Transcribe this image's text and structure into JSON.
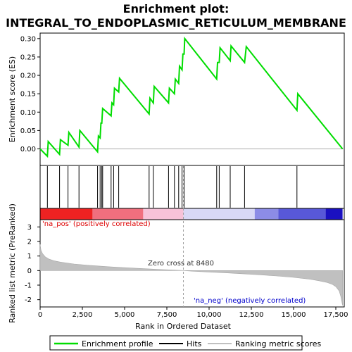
{
  "chart_data": {
    "type": "line",
    "title_line1": "Enrichment plot:",
    "title_line2": "INTEGRAL_TO_ENDOPLASMIC_RETICULUM_MEMBRANE",
    "es_panel": {
      "ylabel": "Enrichment score (ES)",
      "ylim": [
        -0.045,
        0.315
      ],
      "yticks": [
        0.0,
        0.05,
        0.1,
        0.15,
        0.2,
        0.25,
        0.3
      ],
      "ytick_labels": [
        "0.00",
        "0.05",
        "0.10",
        "0.15",
        "0.20",
        "0.25",
        "0.30"
      ],
      "line_color": "#00dd00",
      "series": [
        {
          "name": "Enrichment profile",
          "x": [
            0,
            430,
            480,
            1150,
            1200,
            1650,
            1700,
            2300,
            2350,
            3400,
            3450,
            3550,
            3600,
            3650,
            3700,
            4200,
            4250,
            4350,
            4400,
            4650,
            4700,
            6450,
            6500,
            6700,
            6750,
            7600,
            7650,
            7950,
            8000,
            8200,
            8250,
            8400,
            8450,
            8520,
            8560,
            10450,
            10500,
            10600,
            10650,
            11250,
            11300,
            12100,
            12200,
            15200,
            15250,
            17900
          ],
          "y": [
            0.0,
            -0.02,
            0.02,
            -0.015,
            0.025,
            0.01,
            0.045,
            0.005,
            0.05,
            -0.008,
            0.035,
            0.03,
            0.07,
            0.07,
            0.11,
            0.09,
            0.125,
            0.12,
            0.165,
            0.155,
            0.192,
            0.095,
            0.138,
            0.125,
            0.17,
            0.125,
            0.165,
            0.15,
            0.19,
            0.178,
            0.225,
            0.215,
            0.258,
            0.258,
            0.3,
            0.19,
            0.235,
            0.235,
            0.275,
            0.24,
            0.28,
            0.235,
            0.278,
            0.105,
            0.15,
            0.0
          ]
        }
      ]
    },
    "hits": [
      430,
      1150,
      1650,
      2300,
      3400,
      3550,
      3650,
      3700,
      4200,
      4350,
      4650,
      6450,
      6700,
      7600,
      7950,
      8200,
      8400,
      8520,
      10450,
      10600,
      11250,
      12100,
      15200
    ],
    "rank_panel": {
      "ylabel": "Ranked list metric (PreRanked)",
      "xlabel": "Rank in Ordered Dataset",
      "ylim": [
        -2.5,
        3.5
      ],
      "yticks": [
        -2,
        -1,
        0,
        1,
        2,
        3
      ],
      "ytick_labels": [
        "-2",
        "-1",
        "0",
        "1",
        "2",
        "3"
      ],
      "xticks": [
        0,
        2500,
        5000,
        7500,
        10000,
        12500,
        15000,
        17500
      ],
      "xtick_labels": [
        "0",
        "2,500",
        "5,000",
        "7,500",
        "10,000",
        "12,500",
        "15,000",
        "17,500"
      ],
      "xlim": [
        0,
        18000
      ],
      "n_genes": 17900,
      "metric_x": [
        0,
        50,
        150,
        300,
        500,
        800,
        1200,
        2000,
        3000,
        4000,
        5000,
        6000,
        7000,
        8000,
        8480,
        9000,
        10000,
        11000,
        12000,
        13000,
        14000,
        15000,
        16000,
        16500,
        17000,
        17300,
        17500,
        17700,
        17800,
        17900
      ],
      "metric_y": [
        1.8,
        1.4,
        1.15,
        0.95,
        0.8,
        0.68,
        0.58,
        0.45,
        0.35,
        0.27,
        0.2,
        0.14,
        0.08,
        0.03,
        0.0,
        -0.04,
        -0.1,
        -0.16,
        -0.22,
        -0.29,
        -0.37,
        -0.47,
        -0.6,
        -0.7,
        -0.82,
        -0.95,
        -1.1,
        -1.4,
        -1.8,
        -2.4
      ],
      "zero_cross": 8480,
      "zero_cross_text": "Zero cross at 8480",
      "pos_label": "'na_pos' (positively correlated)",
      "neg_label": "'na_neg' (negatively correlated)",
      "pos_color": "#dd0000",
      "neg_color": "#0000cc"
    },
    "heat_bar": {
      "segments": [
        {
          "start": 0,
          "end": 3100,
          "color": "#ee2222"
        },
        {
          "start": 3100,
          "end": 6100,
          "color": "#f06f7e"
        },
        {
          "start": 6100,
          "end": 8480,
          "color": "#f7c2d8"
        },
        {
          "start": 8480,
          "end": 12700,
          "color": "#d8d8f6"
        },
        {
          "start": 12700,
          "end": 14100,
          "color": "#8c8ce6"
        },
        {
          "start": 14100,
          "end": 16900,
          "color": "#5858d8"
        },
        {
          "start": 16900,
          "end": 17900,
          "color": "#1a10c0"
        }
      ]
    },
    "legend": {
      "items": [
        {
          "label": "Enrichment profile",
          "color": "#00dd00",
          "kind": "line"
        },
        {
          "label": "Hits",
          "color": "#000000",
          "kind": "line"
        },
        {
          "label": "Ranking metric scores",
          "color": "#c0c0c0",
          "kind": "line"
        }
      ]
    }
  }
}
